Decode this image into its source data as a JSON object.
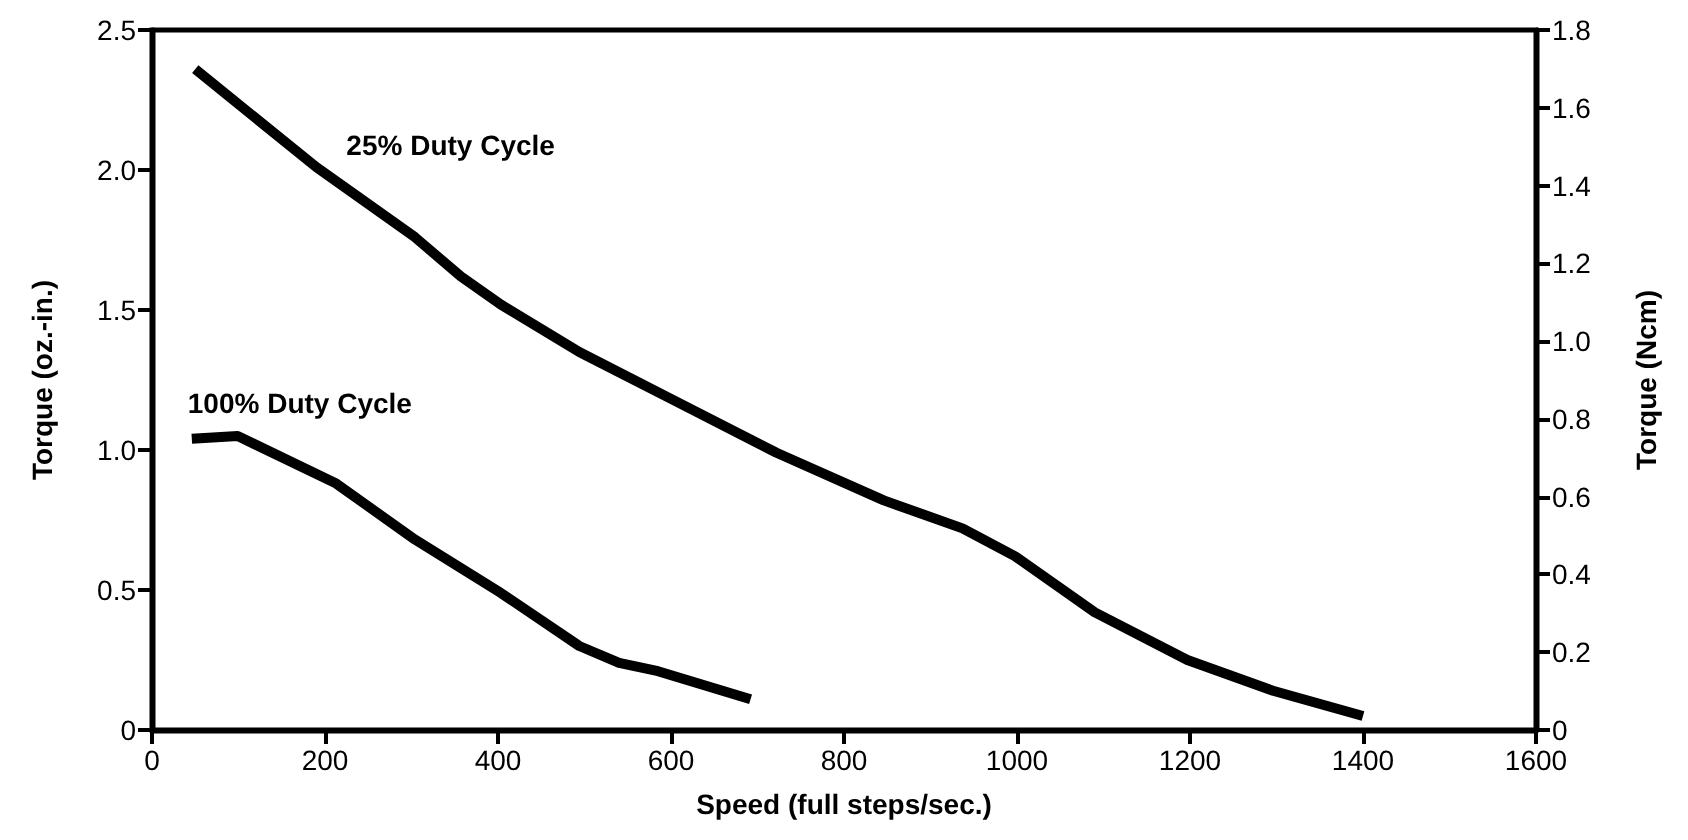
{
  "chart_data": {
    "type": "line",
    "xlabel": "Speed (full steps/sec.)",
    "ylabel": "Torque (oz.-in.)",
    "y2label": "Torque (Ncm)",
    "series": [
      {
        "name": "25% Duty Cycle",
        "color": "#000000",
        "x": [
          50,
          190,
          304,
          357,
          403,
          494,
          608,
          722,
          846,
          937,
          998,
          1090,
          1197,
          1296,
          1400
        ],
        "values": [
          2.36,
          2.01,
          1.76,
          1.62,
          1.52,
          1.35,
          1.17,
          0.99,
          0.82,
          0.72,
          0.62,
          0.42,
          0.25,
          0.14,
          0.05
        ]
      },
      {
        "name": "100% Duty Cycle",
        "color": "#000000",
        "x": [
          46,
          99,
          213,
          304,
          403,
          494,
          540,
          585,
          692
        ],
        "values": [
          1.04,
          1.05,
          0.88,
          0.68,
          0.49,
          0.3,
          0.24,
          0.21,
          0.11
        ]
      }
    ],
    "xlim": [
      0,
      1600
    ],
    "xticks": [
      0,
      200,
      400,
      600,
      800,
      1000,
      1200,
      1400,
      1600
    ],
    "ylim": [
      0,
      2.5
    ],
    "yticks": [
      0,
      0.5,
      {
        "value": 1,
        "label": "1.0"
      },
      1.5,
      {
        "value": 2,
        "label": "2.0"
      },
      2.5
    ],
    "y2lim": [
      0,
      1.8
    ],
    "y2ticks": [
      0,
      0.2,
      0.4,
      0.6,
      0.8,
      {
        "value": 1,
        "label": "1.0"
      },
      1.2,
      1.4,
      1.6,
      1.8
    ],
    "grid": false,
    "legend": false,
    "marker": "none",
    "line_style": "solid"
  }
}
